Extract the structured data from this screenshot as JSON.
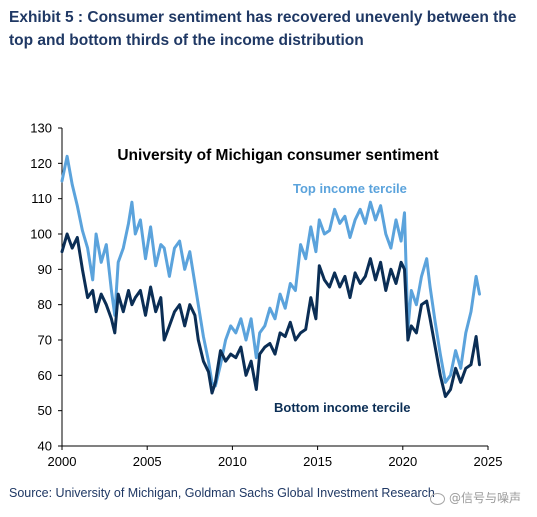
{
  "header": {
    "title": "Exhibit 5 : Consumer sentiment has recovered unevenly between the top and bottom thirds of the income distribution"
  },
  "footer": {
    "source": "Source: University of Michigan, Goldman Sachs Global Investment Research",
    "watermark": "@信号与噪声"
  },
  "colors": {
    "title_text": "#1f3864",
    "top_series": "#5ba3dc",
    "bottom_series": "#0b2e55",
    "axis": "#000000"
  },
  "chart_data": {
    "type": "line",
    "title": "University of Michigan consumer sentiment",
    "xlabel": "",
    "ylabel": "",
    "xlim": [
      2000,
      2025
    ],
    "ylim": [
      40,
      130
    ],
    "xticks": [
      2000,
      2005,
      2010,
      2015,
      2020,
      2025
    ],
    "yticks": [
      40,
      50,
      60,
      70,
      80,
      90,
      100,
      110,
      120,
      130
    ],
    "grid": false,
    "legend": "inline series labels",
    "series": [
      {
        "name": "Top income tercile",
        "color": "#5ba3dc",
        "x": [
          2000.0,
          2000.3,
          2000.6,
          2000.9,
          2001.2,
          2001.5,
          2001.8,
          2002.0,
          2002.3,
          2002.6,
          2002.9,
          2003.1,
          2003.3,
          2003.6,
          2003.9,
          2004.1,
          2004.3,
          2004.6,
          2004.9,
          2005.2,
          2005.5,
          2005.8,
          2006.0,
          2006.3,
          2006.6,
          2006.9,
          2007.2,
          2007.5,
          2007.8,
          2008.0,
          2008.3,
          2008.6,
          2008.8,
          2009.0,
          2009.3,
          2009.6,
          2009.9,
          2010.2,
          2010.5,
          2010.8,
          2011.1,
          2011.4,
          2011.6,
          2011.9,
          2012.2,
          2012.5,
          2012.8,
          2013.1,
          2013.4,
          2013.7,
          2014.0,
          2014.3,
          2014.6,
          2014.9,
          2015.1,
          2015.4,
          2015.7,
          2016.0,
          2016.3,
          2016.6,
          2016.9,
          2017.2,
          2017.5,
          2017.8,
          2018.1,
          2018.4,
          2018.7,
          2019.0,
          2019.3,
          2019.6,
          2019.9,
          2020.1,
          2020.3,
          2020.5,
          2020.8,
          2021.1,
          2021.4,
          2021.6,
          2021.9,
          2022.2,
          2022.5,
          2022.8,
          2023.1,
          2023.4,
          2023.7,
          2024.0,
          2024.3,
          2024.5
        ],
        "y": [
          115,
          122,
          114,
          108,
          101,
          96,
          87,
          100,
          92,
          97,
          84,
          77,
          92,
          96,
          103,
          109,
          100,
          104,
          93,
          102,
          91,
          97,
          96,
          88,
          96,
          98,
          90,
          95,
          86,
          80,
          71,
          64,
          58,
          57,
          63,
          70,
          74,
          72,
          76,
          70,
          76,
          65,
          72,
          74,
          79,
          76,
          83,
          79,
          86,
          84,
          97,
          93,
          102,
          95,
          104,
          100,
          101,
          107,
          103,
          105,
          99,
          104,
          107,
          103,
          109,
          104,
          108,
          100,
          96,
          104,
          98,
          106,
          73,
          84,
          80,
          88,
          93,
          85,
          75,
          66,
          58,
          60,
          67,
          62,
          72,
          78,
          88,
          83
        ]
      },
      {
        "name": "Bottom income tercile",
        "color": "#0b2e55",
        "x": [
          2000.0,
          2000.3,
          2000.6,
          2000.9,
          2001.2,
          2001.5,
          2001.8,
          2002.0,
          2002.3,
          2002.6,
          2002.9,
          2003.1,
          2003.3,
          2003.6,
          2003.9,
          2004.1,
          2004.3,
          2004.6,
          2004.9,
          2005.2,
          2005.5,
          2005.8,
          2006.0,
          2006.3,
          2006.6,
          2006.9,
          2007.2,
          2007.5,
          2007.8,
          2008.0,
          2008.3,
          2008.6,
          2008.8,
          2009.0,
          2009.3,
          2009.6,
          2009.9,
          2010.2,
          2010.5,
          2010.8,
          2011.1,
          2011.4,
          2011.6,
          2011.9,
          2012.2,
          2012.5,
          2012.8,
          2013.1,
          2013.4,
          2013.7,
          2014.0,
          2014.3,
          2014.6,
          2014.9,
          2015.1,
          2015.4,
          2015.7,
          2016.0,
          2016.3,
          2016.6,
          2016.9,
          2017.2,
          2017.5,
          2017.8,
          2018.1,
          2018.4,
          2018.7,
          2019.0,
          2019.3,
          2019.6,
          2019.9,
          2020.1,
          2020.3,
          2020.5,
          2020.8,
          2021.1,
          2021.4,
          2021.6,
          2021.9,
          2022.2,
          2022.5,
          2022.8,
          2023.1,
          2023.4,
          2023.7,
          2024.0,
          2024.3,
          2024.5
        ],
        "y": [
          95,
          100,
          96,
          99,
          90,
          82,
          84,
          78,
          83,
          80,
          76,
          72,
          83,
          78,
          84,
          80,
          82,
          84,
          77,
          85,
          78,
          82,
          70,
          74,
          78,
          80,
          74,
          80,
          77,
          70,
          64,
          61,
          55,
          58,
          67,
          64,
          66,
          65,
          68,
          60,
          64,
          56,
          66,
          68,
          69,
          66,
          72,
          71,
          75,
          70,
          72,
          73,
          82,
          76,
          91,
          87,
          85,
          89,
          85,
          88,
          82,
          89,
          86,
          88,
          93,
          87,
          92,
          84,
          90,
          86,
          92,
          90,
          70,
          74,
          72,
          80,
          81,
          76,
          68,
          60,
          54,
          56,
          62,
          58,
          62,
          63,
          71,
          63
        ]
      }
    ],
    "annotations": [
      {
        "text": "Top income tercile",
        "series": "Top income tercile"
      },
      {
        "text": "Bottom income tercile",
        "series": "Bottom income tercile"
      }
    ]
  }
}
